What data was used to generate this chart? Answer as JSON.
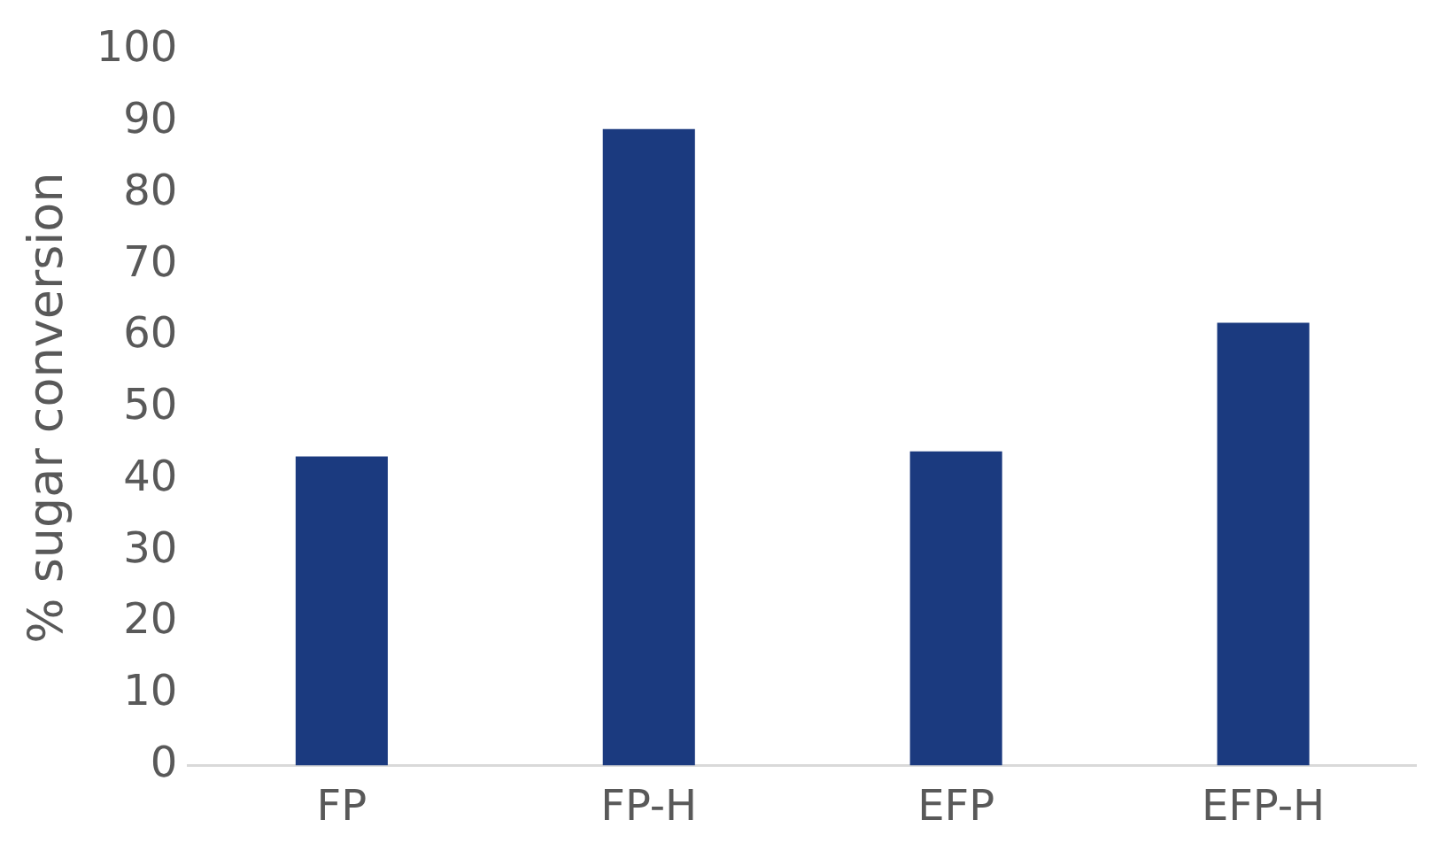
{
  "chart_data": {
    "type": "bar",
    "ylabel": "% sugar conversion",
    "categories": [
      "FP",
      "FP-H",
      "EFP",
      "EFP-H"
    ],
    "values": [
      43.2,
      89,
      43.9,
      61.9
    ],
    "color": "#1b3a7f",
    "ylim": [
      0,
      100
    ],
    "yticks": [
      0,
      10,
      20,
      30,
      40,
      50,
      60,
      70,
      80,
      90,
      100
    ],
    "grid": false,
    "legend": false
  }
}
